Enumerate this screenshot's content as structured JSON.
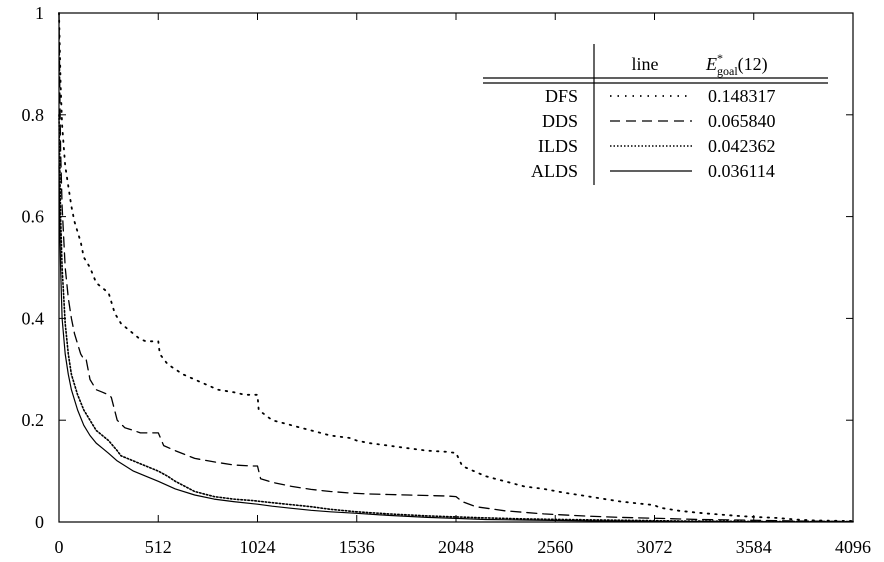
{
  "chart_data": {
    "type": "line",
    "title": "",
    "xlabel": "",
    "ylabel": "",
    "xlim": [
      0,
      4096
    ],
    "ylim": [
      0,
      1
    ],
    "x_ticks": [
      "0",
      "512",
      "1024",
      "1536",
      "2048",
      "2560",
      "3072",
      "3584",
      "4096"
    ],
    "y_ticks": [
      "0",
      "0.2",
      "0.4",
      "0.6",
      "0.8",
      "1"
    ],
    "grid": false,
    "legend": {
      "placement": "top-right",
      "header_line": "line",
      "header_value": "E*goal(12)",
      "header_value_main": "E",
      "header_value_sup": "*",
      "header_value_sub": "goal",
      "header_value_arg": "(12)"
    },
    "series": [
      {
        "name": "DFS",
        "style": "dotted-sparse",
        "value_label": "0.148317",
        "x": [
          0,
          4,
          8,
          16,
          32,
          48,
          64,
          80,
          96,
          112,
          128,
          160,
          192,
          224,
          256,
          288,
          320,
          352,
          384,
          416,
          448,
          480,
          512,
          520,
          560,
          640,
          700,
          760,
          820,
          900,
          960,
          1000,
          1024,
          1030,
          1100,
          1200,
          1300,
          1400,
          1500,
          1536,
          1600,
          1700,
          1800,
          1900,
          2000,
          2040,
          2048,
          2080,
          2200,
          2300,
          2400,
          2500,
          2600,
          2700,
          2800,
          2900,
          3000,
          3050,
          3072,
          3100,
          3200,
          3300,
          3400,
          3500,
          3584,
          3700,
          3800,
          3900,
          4096
        ],
        "y": [
          1.0,
          0.93,
          0.86,
          0.78,
          0.7,
          0.66,
          0.62,
          0.59,
          0.57,
          0.55,
          0.52,
          0.5,
          0.47,
          0.46,
          0.45,
          0.41,
          0.39,
          0.38,
          0.37,
          0.36,
          0.355,
          0.355,
          0.355,
          0.33,
          0.31,
          0.29,
          0.28,
          0.27,
          0.26,
          0.255,
          0.25,
          0.25,
          0.25,
          0.22,
          0.2,
          0.19,
          0.18,
          0.17,
          0.165,
          0.16,
          0.155,
          0.15,
          0.145,
          0.14,
          0.138,
          0.136,
          0.136,
          0.11,
          0.09,
          0.08,
          0.07,
          0.065,
          0.058,
          0.052,
          0.046,
          0.04,
          0.036,
          0.034,
          0.033,
          0.028,
          0.022,
          0.018,
          0.015,
          0.012,
          0.01,
          0.008,
          0.005,
          0.003,
          0.002
        ]
      },
      {
        "name": "DDS",
        "style": "dashed",
        "value_label": "0.065840",
        "x": [
          0,
          4,
          8,
          16,
          32,
          48,
          64,
          80,
          96,
          112,
          128,
          140,
          160,
          192,
          224,
          256,
          270,
          300,
          340,
          384,
          420,
          460,
          512,
          540,
          600,
          700,
          800,
          900,
          1000,
          1024,
          1040,
          1100,
          1200,
          1300,
          1400,
          1500,
          1600,
          1700,
          1800,
          1900,
          2000,
          2048,
          2080,
          2150,
          2300,
          2500,
          2700,
          2900,
          3100,
          3300,
          3500,
          3800,
          4096
        ],
        "y": [
          1.0,
          0.85,
          0.73,
          0.62,
          0.5,
          0.44,
          0.4,
          0.37,
          0.35,
          0.33,
          0.32,
          0.32,
          0.28,
          0.26,
          0.255,
          0.25,
          0.245,
          0.2,
          0.185,
          0.18,
          0.175,
          0.175,
          0.175,
          0.15,
          0.14,
          0.125,
          0.118,
          0.112,
          0.11,
          0.11,
          0.085,
          0.078,
          0.07,
          0.064,
          0.06,
          0.057,
          0.055,
          0.054,
          0.053,
          0.052,
          0.051,
          0.05,
          0.04,
          0.03,
          0.022,
          0.016,
          0.012,
          0.009,
          0.007,
          0.005,
          0.004,
          0.002,
          0.001
        ]
      },
      {
        "name": "ILDS",
        "style": "dotted-dense",
        "value_label": "0.042362",
        "x": [
          0,
          8,
          16,
          32,
          48,
          64,
          96,
          128,
          160,
          192,
          224,
          256,
          300,
          320,
          384,
          448,
          512,
          560,
          600,
          700,
          800,
          900,
          1000,
          1100,
          1200,
          1300,
          1400,
          1536,
          1700,
          1900,
          2048,
          2200,
          2400,
          2600,
          2800,
          3000,
          3200,
          3400,
          3600,
          3800,
          4096
        ],
        "y": [
          0.8,
          0.6,
          0.5,
          0.39,
          0.33,
          0.29,
          0.25,
          0.22,
          0.2,
          0.18,
          0.17,
          0.16,
          0.14,
          0.13,
          0.12,
          0.11,
          0.1,
          0.09,
          0.08,
          0.06,
          0.05,
          0.045,
          0.042,
          0.038,
          0.034,
          0.03,
          0.025,
          0.02,
          0.016,
          0.012,
          0.01,
          0.008,
          0.006,
          0.005,
          0.004,
          0.003,
          0.002,
          0.0015,
          0.001,
          0.0008,
          0.0005
        ]
      },
      {
        "name": "ALDS",
        "style": "solid",
        "value_label": "0.036114",
        "x": [
          0,
          4,
          8,
          16,
          32,
          48,
          64,
          96,
          128,
          160,
          192,
          224,
          256,
          300,
          384,
          448,
          512,
          600,
          700,
          800,
          900,
          1024,
          1100,
          1200,
          1300,
          1400,
          1536,
          1700,
          1900,
          2048,
          2200,
          2400,
          2600,
          2800,
          3000,
          3200,
          3400,
          3600,
          3800,
          4096
        ],
        "y": [
          0.7,
          0.58,
          0.5,
          0.4,
          0.33,
          0.29,
          0.26,
          0.22,
          0.19,
          0.17,
          0.155,
          0.145,
          0.135,
          0.12,
          0.1,
          0.09,
          0.08,
          0.065,
          0.053,
          0.045,
          0.04,
          0.035,
          0.031,
          0.027,
          0.023,
          0.02,
          0.017,
          0.013,
          0.009,
          0.007,
          0.005,
          0.004,
          0.003,
          0.002,
          0.0015,
          0.001,
          0.0008,
          0.0005,
          0.0003,
          0.0002
        ]
      }
    ]
  }
}
